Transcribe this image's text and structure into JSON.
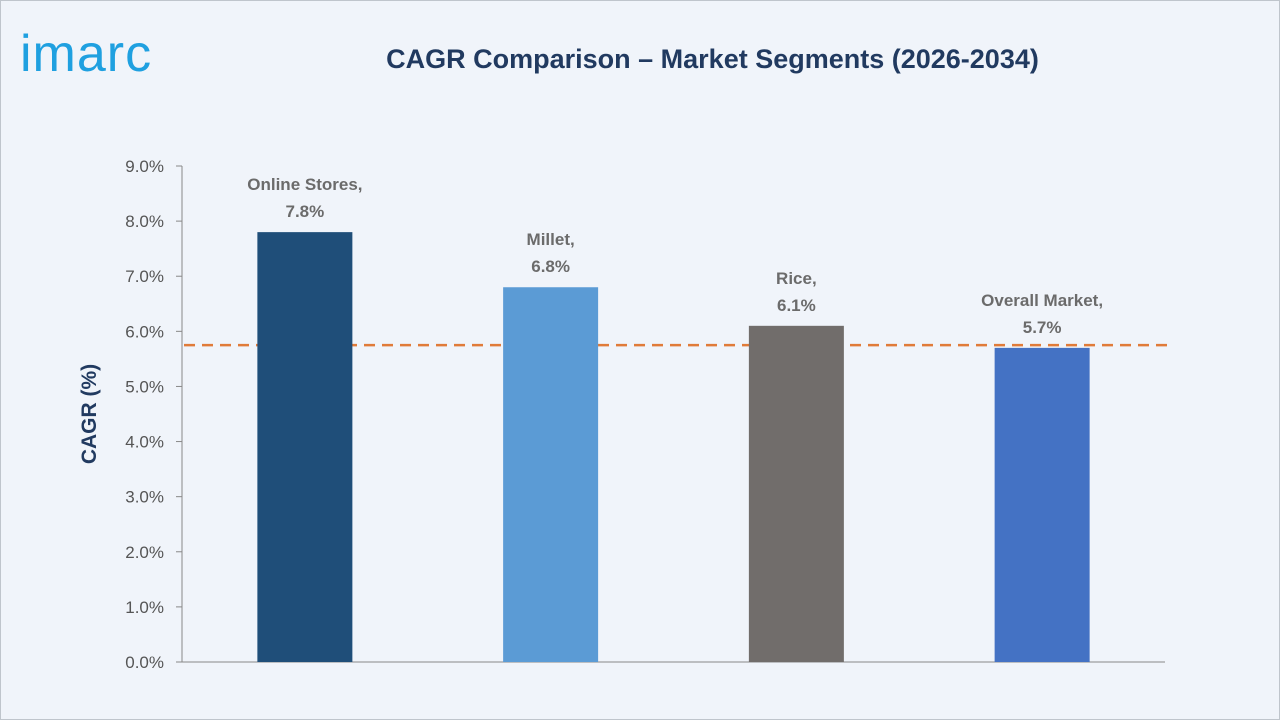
{
  "brand": {
    "logo_text": "imarc",
    "logo_color": "#1fa0e0"
  },
  "chart_data": {
    "type": "bar",
    "title": "CAGR Comparison – Market Segments (2026-2034)",
    "xlabel": "",
    "ylabel": "CAGR (%)",
    "ylim": [
      0,
      9
    ],
    "yticks": [
      "0.0%",
      "1.0%",
      "2.0%",
      "3.0%",
      "4.0%",
      "5.0%",
      "6.0%",
      "7.0%",
      "8.0%",
      "9.0%"
    ],
    "grid": false,
    "categories": [
      "Online Stores",
      "Millet",
      "Rice",
      "Overall Market"
    ],
    "values": [
      7.8,
      6.8,
      6.1,
      5.7
    ],
    "data_labels": [
      [
        "Online Stores,",
        "7.8%"
      ],
      [
        "Millet,",
        "6.8%"
      ],
      [
        "Rice,",
        "6.1%"
      ],
      [
        "Overall Market,",
        "5.7%"
      ]
    ],
    "bar_colors": [
      "#1f4e79",
      "#5b9bd5",
      "#716d6b",
      "#4472c4"
    ],
    "reference_line": {
      "value": 5.75,
      "style": "dashed",
      "color": "#e07b39"
    }
  }
}
